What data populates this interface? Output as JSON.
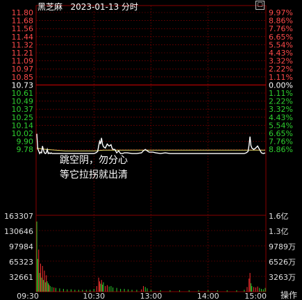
{
  "header": {
    "stock_name": "黑芝麻",
    "date": "2023-01-13",
    "mode": "分时",
    "settings_icon": "settings-box-icon"
  },
  "annotation": {
    "line1": "跳空阴，勿分心",
    "line2": "等它拉拐就出清"
  },
  "footer": {
    "operate_label": "操作"
  },
  "colors": {
    "up": "#ff4a4a",
    "down": "#2fd12f",
    "flat": "#ffffff",
    "avg_line": "#e8e06a",
    "price_line": "#ffffff",
    "grid": "#8a0000",
    "volume_up": "#ff3030",
    "volume_down": "#2fd12f"
  },
  "chart_data": {
    "type": "line",
    "prev_close": 10.73,
    "price_axis_left": [
      {
        "label": "11.80",
        "dir": "up"
      },
      {
        "label": "11.68",
        "dir": "up"
      },
      {
        "label": "11.56",
        "dir": "up"
      },
      {
        "label": "11.44",
        "dir": "up"
      },
      {
        "label": "11.32",
        "dir": "up"
      },
      {
        "label": "11.21",
        "dir": "up"
      },
      {
        "label": "11.09",
        "dir": "up"
      },
      {
        "label": "10.97",
        "dir": "up"
      },
      {
        "label": "10.85",
        "dir": "up"
      },
      {
        "label": "10.73",
        "dir": "flat"
      },
      {
        "label": "10.61",
        "dir": "down"
      },
      {
        "label": "10.49",
        "dir": "down"
      },
      {
        "label": "10.37",
        "dir": "down"
      },
      {
        "label": "10.25",
        "dir": "down"
      },
      {
        "label": "10.14",
        "dir": "down"
      },
      {
        "label": "10.02",
        "dir": "down"
      },
      {
        "label": "9.90",
        "dir": "down"
      },
      {
        "label": "9.78",
        "dir": "down"
      }
    ],
    "pct_axis_right": [
      {
        "label": "9.97%",
        "dir": "up"
      },
      {
        "label": "8.86%",
        "dir": "up"
      },
      {
        "label": "7.76%",
        "dir": "up"
      },
      {
        "label": "6.65%",
        "dir": "up"
      },
      {
        "label": "5.54%",
        "dir": "up"
      },
      {
        "label": "4.43%",
        "dir": "up"
      },
      {
        "label": "3.32%",
        "dir": "up"
      },
      {
        "label": "2.22%",
        "dir": "up"
      },
      {
        "label": "1.11%",
        "dir": "up"
      },
      {
        "label": "0.00%",
        "dir": "flat"
      },
      {
        "label": "1.11%",
        "dir": "down"
      },
      {
        "label": "2.22%",
        "dir": "down"
      },
      {
        "label": "3.32%",
        "dir": "down"
      },
      {
        "label": "4.43%",
        "dir": "down"
      },
      {
        "label": "5.54%",
        "dir": "down"
      },
      {
        "label": "6.65%",
        "dir": "down"
      },
      {
        "label": "7.76%",
        "dir": "down"
      },
      {
        "label": "8.86%",
        "dir": "down"
      }
    ],
    "volume_axis_left": [
      "163307",
      "130646",
      "97984",
      "65323",
      "32661"
    ],
    "volume_axis_right": [
      "1.6亿",
      "1.3亿",
      "9789万",
      "6526万",
      "3263万"
    ],
    "time_labels": [
      "09:30",
      "10:30",
      "13:00",
      "14:00",
      "15:00"
    ],
    "price_series": [
      [
        0,
        10.01
      ],
      [
        1,
        9.79
      ],
      [
        2,
        9.76
      ],
      [
        3,
        9.72
      ],
      [
        4,
        9.74
      ],
      [
        5,
        9.73
      ],
      [
        6,
        9.83
      ],
      [
        7,
        9.77
      ],
      [
        8,
        9.73
      ],
      [
        9,
        9.72
      ],
      [
        10,
        9.73
      ],
      [
        11,
        9.78
      ],
      [
        12,
        9.72
      ],
      [
        13,
        9.73
      ],
      [
        14,
        9.72
      ],
      [
        15,
        9.73
      ],
      [
        16,
        9.72
      ],
      [
        17,
        9.72
      ],
      [
        18,
        9.72
      ],
      [
        19,
        9.72
      ],
      [
        20,
        9.72
      ],
      [
        22,
        9.72
      ],
      [
        25,
        9.72
      ],
      [
        30,
        9.72
      ],
      [
        35,
        9.72
      ],
      [
        40,
        9.72
      ],
      [
        45,
        9.72
      ],
      [
        50,
        9.72
      ],
      [
        55,
        9.72
      ],
      [
        60,
        9.72
      ],
      [
        62,
        9.73
      ],
      [
        64,
        9.75
      ],
      [
        65,
        9.83
      ],
      [
        66,
        9.9
      ],
      [
        67,
        9.86
      ],
      [
        68,
        9.95
      ],
      [
        69,
        9.86
      ],
      [
        70,
        9.82
      ],
      [
        72,
        9.8
      ],
      [
        74,
        9.86
      ],
      [
        76,
        9.83
      ],
      [
        78,
        9.85
      ],
      [
        79,
        9.8
      ],
      [
        80,
        9.78
      ],
      [
        82,
        9.78
      ],
      [
        84,
        9.73
      ],
      [
        86,
        9.76
      ],
      [
        88,
        9.72
      ],
      [
        90,
        9.72
      ],
      [
        92,
        9.73
      ],
      [
        95,
        9.73
      ],
      [
        100,
        9.72
      ],
      [
        105,
        9.72
      ],
      [
        110,
        9.73
      ],
      [
        112,
        9.76
      ],
      [
        114,
        9.78
      ],
      [
        116,
        9.76
      ],
      [
        118,
        9.74
      ],
      [
        120,
        9.74
      ],
      [
        122,
        9.74
      ],
      [
        125,
        9.73
      ],
      [
        130,
        9.72
      ],
      [
        135,
        9.73
      ],
      [
        140,
        9.72
      ],
      [
        145,
        9.72
      ],
      [
        150,
        9.72
      ],
      [
        160,
        9.72
      ],
      [
        170,
        9.72
      ],
      [
        180,
        9.72
      ],
      [
        190,
        9.72
      ],
      [
        200,
        9.72
      ],
      [
        210,
        9.72
      ],
      [
        218,
        9.72
      ],
      [
        220,
        9.73
      ],
      [
        222,
        9.75
      ],
      [
        223,
        9.84
      ],
      [
        224,
        9.97
      ],
      [
        225,
        9.84
      ],
      [
        226,
        9.8
      ],
      [
        228,
        9.78
      ],
      [
        230,
        9.8
      ],
      [
        232,
        9.83
      ],
      [
        234,
        9.78
      ],
      [
        236,
        9.73
      ],
      [
        238,
        9.72
      ],
      [
        240,
        9.73
      ]
    ],
    "avg_series": [
      [
        0,
        9.8
      ],
      [
        10,
        9.78
      ],
      [
        30,
        9.76
      ],
      [
        60,
        9.76
      ],
      [
        70,
        9.77
      ],
      [
        90,
        9.77
      ],
      [
        120,
        9.77
      ],
      [
        160,
        9.77
      ],
      [
        200,
        9.77
      ],
      [
        240,
        9.77
      ]
    ],
    "volume_bars": [
      {
        "t": 0,
        "v": 150000,
        "dir": "down"
      },
      {
        "t": 1,
        "v": 70000,
        "dir": "down"
      },
      {
        "t": 2,
        "v": 90000,
        "dir": "up"
      },
      {
        "t": 3,
        "v": 40000,
        "dir": "down"
      },
      {
        "t": 4,
        "v": 60000,
        "dir": "up"
      },
      {
        "t": 5,
        "v": 30000,
        "dir": "down"
      },
      {
        "t": 6,
        "v": 55000,
        "dir": "up"
      },
      {
        "t": 7,
        "v": 25000,
        "dir": "down"
      },
      {
        "t": 8,
        "v": 45000,
        "dir": "up"
      },
      {
        "t": 9,
        "v": 20000,
        "dir": "down"
      },
      {
        "t": 10,
        "v": 35000,
        "dir": "up"
      },
      {
        "t": 11,
        "v": 22000,
        "dir": "down"
      },
      {
        "t": 12,
        "v": 18000,
        "dir": "down"
      },
      {
        "t": 13,
        "v": 15000,
        "dir": "up"
      },
      {
        "t": 14,
        "v": 12000,
        "dir": "down"
      },
      {
        "t": 16,
        "v": 10000,
        "dir": "down"
      },
      {
        "t": 18,
        "v": 9000,
        "dir": "up"
      },
      {
        "t": 20,
        "v": 8000,
        "dir": "down"
      },
      {
        "t": 24,
        "v": 7000,
        "dir": "down"
      },
      {
        "t": 28,
        "v": 6000,
        "dir": "down"
      },
      {
        "t": 32,
        "v": 5000,
        "dir": "down"
      },
      {
        "t": 36,
        "v": 5000,
        "dir": "down"
      },
      {
        "t": 40,
        "v": 4000,
        "dir": "down"
      },
      {
        "t": 44,
        "v": 4000,
        "dir": "down"
      },
      {
        "t": 48,
        "v": 4000,
        "dir": "down"
      },
      {
        "t": 52,
        "v": 4000,
        "dir": "down"
      },
      {
        "t": 56,
        "v": 4000,
        "dir": "down"
      },
      {
        "t": 60,
        "v": 6000,
        "dir": "down"
      },
      {
        "t": 63,
        "v": 12000,
        "dir": "up"
      },
      {
        "t": 65,
        "v": 30000,
        "dir": "up"
      },
      {
        "t": 66,
        "v": 22000,
        "dir": "up"
      },
      {
        "t": 67,
        "v": 17000,
        "dir": "down"
      },
      {
        "t": 68,
        "v": 25000,
        "dir": "up"
      },
      {
        "t": 69,
        "v": 15000,
        "dir": "down"
      },
      {
        "t": 70,
        "v": 20000,
        "dir": "down"
      },
      {
        "t": 72,
        "v": 12000,
        "dir": "up"
      },
      {
        "t": 74,
        "v": 14000,
        "dir": "up"
      },
      {
        "t": 76,
        "v": 11000,
        "dir": "down"
      },
      {
        "t": 78,
        "v": 12000,
        "dir": "down"
      },
      {
        "t": 80,
        "v": 9000,
        "dir": "down"
      },
      {
        "t": 84,
        "v": 8000,
        "dir": "down"
      },
      {
        "t": 88,
        "v": 6000,
        "dir": "down"
      },
      {
        "t": 92,
        "v": 6000,
        "dir": "down"
      },
      {
        "t": 96,
        "v": 5000,
        "dir": "down"
      },
      {
        "t": 100,
        "v": 4000,
        "dir": "down"
      },
      {
        "t": 105,
        "v": 4000,
        "dir": "down"
      },
      {
        "t": 110,
        "v": 5000,
        "dir": "up"
      },
      {
        "t": 112,
        "v": 12000,
        "dir": "up"
      },
      {
        "t": 114,
        "v": 10000,
        "dir": "down"
      },
      {
        "t": 116,
        "v": 7000,
        "dir": "down"
      },
      {
        "t": 120,
        "v": 4000,
        "dir": "down"
      },
      {
        "t": 130,
        "v": 3000,
        "dir": "down"
      },
      {
        "t": 140,
        "v": 3000,
        "dir": "down"
      },
      {
        "t": 150,
        "v": 3000,
        "dir": "down"
      },
      {
        "t": 160,
        "v": 3000,
        "dir": "down"
      },
      {
        "t": 170,
        "v": 3000,
        "dir": "down"
      },
      {
        "t": 180,
        "v": 3000,
        "dir": "down"
      },
      {
        "t": 190,
        "v": 3000,
        "dir": "down"
      },
      {
        "t": 200,
        "v": 3000,
        "dir": "down"
      },
      {
        "t": 210,
        "v": 3000,
        "dir": "down"
      },
      {
        "t": 218,
        "v": 4000,
        "dir": "down"
      },
      {
        "t": 221,
        "v": 10000,
        "dir": "up"
      },
      {
        "t": 223,
        "v": 28000,
        "dir": "up"
      },
      {
        "t": 224,
        "v": 40000,
        "dir": "up"
      },
      {
        "t": 225,
        "v": 18000,
        "dir": "down"
      },
      {
        "t": 226,
        "v": 12000,
        "dir": "down"
      },
      {
        "t": 228,
        "v": 10000,
        "dir": "up"
      },
      {
        "t": 230,
        "v": 9000,
        "dir": "up"
      },
      {
        "t": 232,
        "v": 11000,
        "dir": "up"
      },
      {
        "t": 234,
        "v": 8000,
        "dir": "down"
      },
      {
        "t": 236,
        "v": 6000,
        "dir": "down"
      },
      {
        "t": 238,
        "v": 5000,
        "dir": "down"
      },
      {
        "t": 240,
        "v": 8000,
        "dir": "down"
      }
    ]
  }
}
